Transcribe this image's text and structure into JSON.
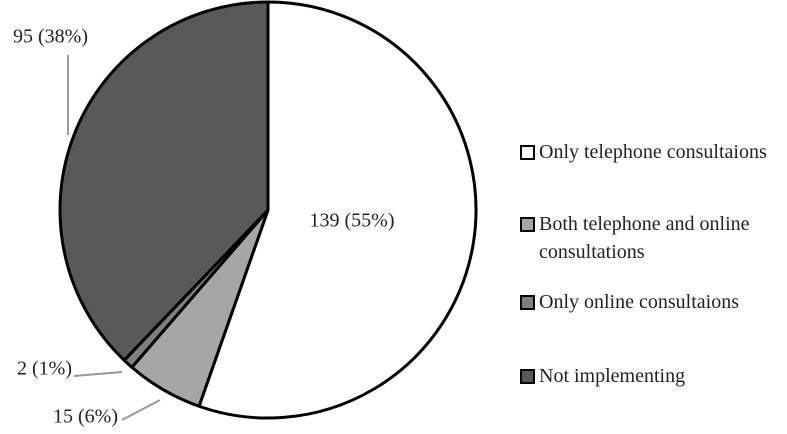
{
  "chart_data": {
    "type": "pie",
    "categories": [
      "Only telephone consultaions",
      "Both telephone and online consultations",
      "Only online consultaions",
      "Not implementing"
    ],
    "values": [
      139,
      15,
      2,
      95
    ],
    "value_labels": [
      "139 (55%)",
      "15 (6%)",
      "2 (1%)",
      "95 (38%)"
    ],
    "colors": [
      "#ffffff",
      "#a6a6a6",
      "#7f7f7f",
      "#595959"
    ]
  }
}
